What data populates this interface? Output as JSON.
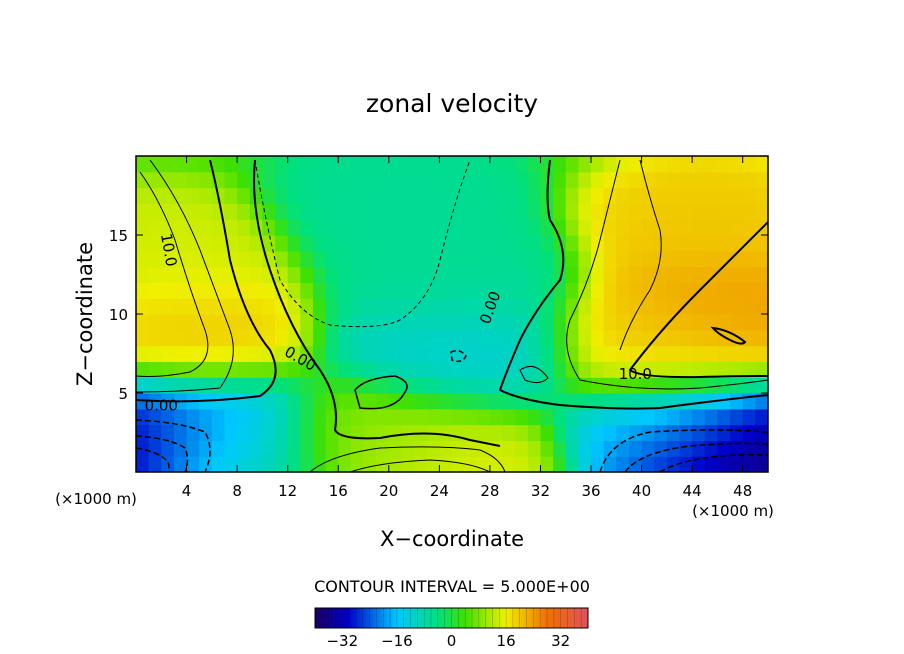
{
  "chart_data": {
    "type": "heatmap",
    "title": "zonal velocity",
    "xlabel": "X−coordinate",
    "ylabel": "Z−coordinate",
    "x_unit_left": "(×1000 m)",
    "x_unit_right": "(×1000 m)",
    "xlim": [
      0,
      50
    ],
    "ylim": [
      0,
      20
    ],
    "x_ticks": [
      4,
      8,
      12,
      16,
      20,
      24,
      28,
      32,
      36,
      40,
      44,
      48
    ],
    "y_ticks": [
      5,
      10,
      15
    ],
    "contour_interval_text": "CONTOUR INTERVAL = 5.000E+00",
    "contour_labels": [
      {
        "text": "10.0",
        "x": 2.2,
        "z": 14.0,
        "rotate": 80
      },
      {
        "text": "10.0",
        "x": 39.5,
        "z": 5.9,
        "rotate": 0
      },
      {
        "text": "0.00",
        "x": 2.0,
        "z": 3.9,
        "rotate": 0
      },
      {
        "text": "0.00",
        "x": 12.8,
        "z": 6.9,
        "rotate": 30
      },
      {
        "text": "0.00",
        "x": 28.4,
        "z": 10.3,
        "rotate": -70
      }
    ],
    "colorbar": {
      "range": [
        -40,
        40
      ],
      "ticks": [
        -32,
        -16,
        0,
        16,
        32
      ],
      "tick_labels": [
        "−32",
        "−16",
        "0",
        "16",
        "32"
      ],
      "colormap": "rainbow (blue-cyan-green-yellow-red)"
    },
    "grid": false,
    "field_features": [
      {
        "x": 3.5,
        "z": 9,
        "value": 20
      },
      {
        "x": 2,
        "z": 13,
        "value": 14
      },
      {
        "x": 0,
        "z": 1.5,
        "value": -40
      },
      {
        "x": 4,
        "z": 2.5,
        "value": -18
      },
      {
        "x": 7,
        "z": 0.5,
        "value": -8
      },
      {
        "x": 47,
        "z": 1.0,
        "value": -40
      },
      {
        "x": 43,
        "z": 2.5,
        "value": -16
      },
      {
        "x": 46,
        "z": 10.5,
        "value": 24
      },
      {
        "x": 45,
        "z": 15.5,
        "value": 20
      },
      {
        "x": 42,
        "z": 8,
        "value": 19
      },
      {
        "x": 21,
        "z": 17,
        "value": -6
      },
      {
        "x": 25,
        "z": 12,
        "value": -6
      },
      {
        "x": 25.5,
        "z": 7.5,
        "value": -12
      },
      {
        "x": 24,
        "z": 0.8,
        "value": 16
      },
      {
        "x": 20,
        "z": 1.5,
        "value": 8
      }
    ],
    "background_value": 3
  }
}
